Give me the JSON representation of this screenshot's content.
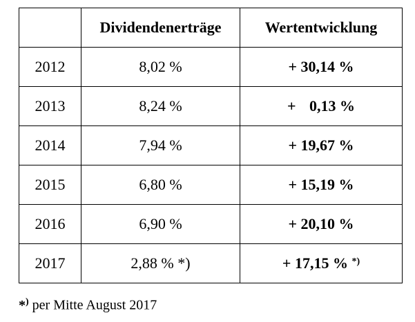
{
  "table": {
    "headers": {
      "year": "",
      "dividend": "Dividendenerträge",
      "value_change": "Wertentwicklung"
    },
    "rows": [
      {
        "year": "2012",
        "dividend": "8,02 %",
        "sign": "+",
        "value": "30,14 %",
        "note": ""
      },
      {
        "year": "2013",
        "dividend": "8,24 %",
        "sign": "+",
        "value": "0,13 %",
        "note": ""
      },
      {
        "year": "2014",
        "dividend": "7,94 %",
        "sign": "+",
        "value": "19,67 %",
        "note": ""
      },
      {
        "year": "2015",
        "dividend": "6,80 %",
        "sign": "+",
        "value": "15,19 %",
        "note": ""
      },
      {
        "year": "2016",
        "dividend": "6,90 %",
        "sign": "+",
        "value": "20,10 %",
        "note": ""
      },
      {
        "year": "2017",
        "dividend": "2,88 % *)",
        "sign": "+",
        "value": "17,15 %",
        "note": "*)"
      }
    ]
  },
  "footnote": {
    "mark": "*",
    "mark_paren": ")",
    "text": " per Mitte August 2017"
  }
}
